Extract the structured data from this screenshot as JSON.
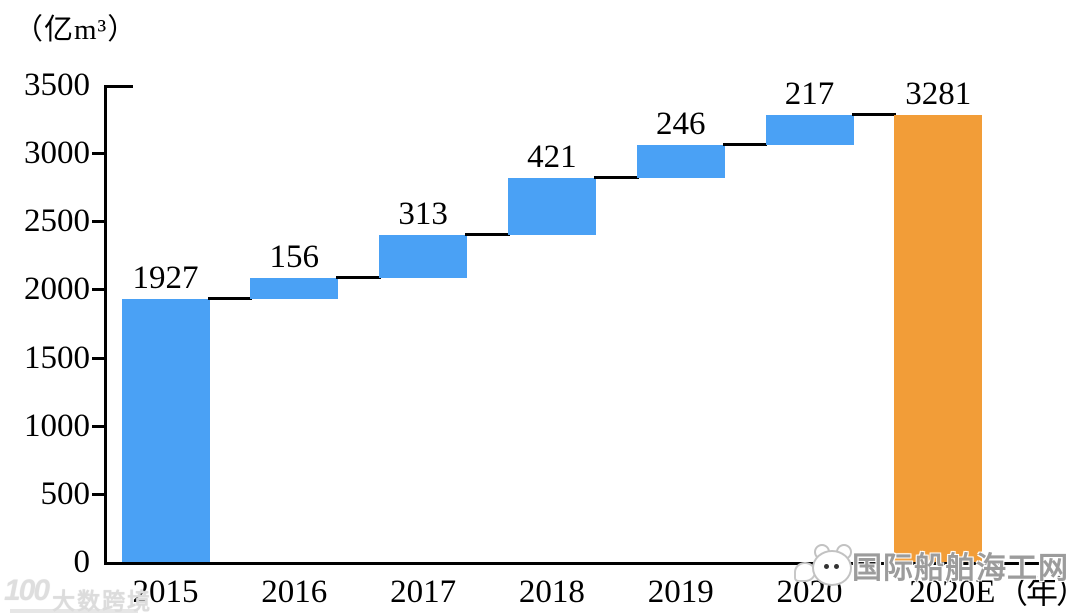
{
  "chart_data": {
    "type": "waterfall",
    "title": "",
    "y_axis": {
      "unit_label": "（亿m³）",
      "min": 0,
      "max": 3500,
      "step": 500,
      "ticks": [
        0,
        500,
        1000,
        1500,
        2000,
        2500,
        3000,
        3500
      ]
    },
    "x_axis": {
      "unit_label": "（年）"
    },
    "categories": [
      "2015",
      "2016",
      "2017",
      "2018",
      "2019",
      "2020",
      "2020E"
    ],
    "bars": [
      {
        "category": "2015",
        "label": "1927",
        "value": 1927,
        "start": 0,
        "end": 1927,
        "kind": "increment"
      },
      {
        "category": "2016",
        "label": "156",
        "value": 156,
        "start": 1927,
        "end": 2083,
        "kind": "increment"
      },
      {
        "category": "2017",
        "label": "313",
        "value": 313,
        "start": 2083,
        "end": 2396,
        "kind": "increment"
      },
      {
        "category": "2018",
        "label": "421",
        "value": 421,
        "start": 2396,
        "end": 2817,
        "kind": "increment"
      },
      {
        "category": "2019",
        "label": "246",
        "value": 246,
        "start": 2817,
        "end": 3063,
        "kind": "increment"
      },
      {
        "category": "2020",
        "label": "217",
        "value": 217,
        "start": 3063,
        "end": 3280,
        "kind": "increment"
      },
      {
        "category": "2020E",
        "label": "3281",
        "value": 3281,
        "start": 0,
        "end": 3281,
        "kind": "total"
      }
    ],
    "colors": {
      "increment": "#4aa1f5",
      "total": "#f29d38",
      "connector": "#000000",
      "axis": "#000000",
      "text": "#000000"
    },
    "grid": false,
    "legend_position": "none"
  },
  "watermarks": {
    "bottom_left": {
      "logo_text": "100",
      "text": "大数跨境"
    },
    "bottom_right": {
      "icon": "chat-mascot-icon",
      "text": "国际船舶海工网"
    }
  }
}
